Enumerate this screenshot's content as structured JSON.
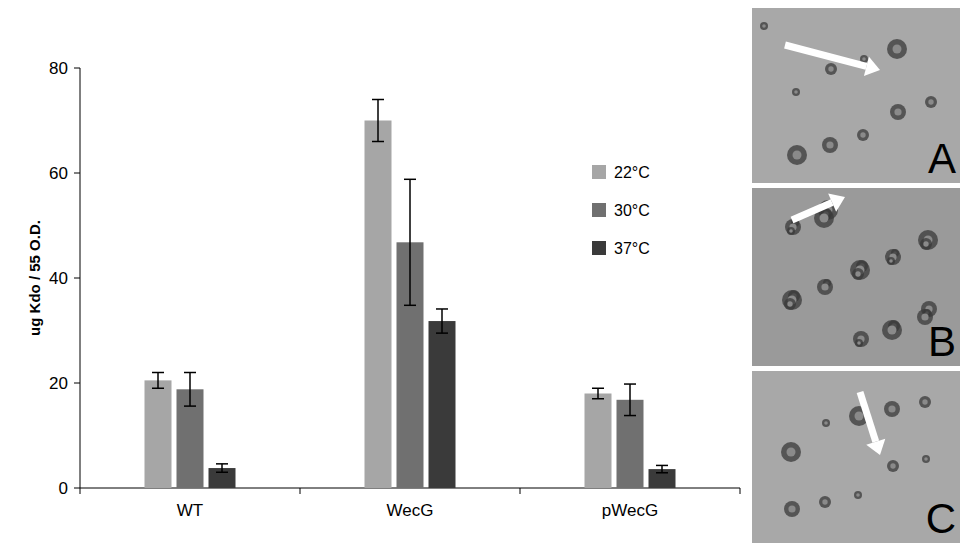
{
  "chart_data": {
    "type": "bar",
    "y_label": "ug Kdo / 55 O.D.",
    "categories": [
      "WT",
      "WecG",
      "pWecG"
    ],
    "series": [
      {
        "name": "22°C",
        "color": "#a6a6a6",
        "values": [
          20.5,
          70,
          18
        ],
        "errors": [
          1.5,
          4,
          1
        ]
      },
      {
        "name": "30°C",
        "color": "#707070",
        "values": [
          18.8,
          46.8,
          16.8
        ],
        "errors": [
          3.2,
          12,
          3
        ]
      },
      {
        "name": "37°C",
        "color": "#3a3a3a",
        "values": [
          3.8,
          31.8,
          3.6
        ],
        "errors": [
          0.8,
          2.3,
          0.7
        ]
      }
    ],
    "ylim": [
      0,
      80
    ],
    "yticks": [
      0,
      20,
      40,
      60,
      80
    ],
    "grid": false,
    "legend": "right"
  },
  "panels": {
    "labels": [
      "A",
      "B",
      "C"
    ]
  }
}
